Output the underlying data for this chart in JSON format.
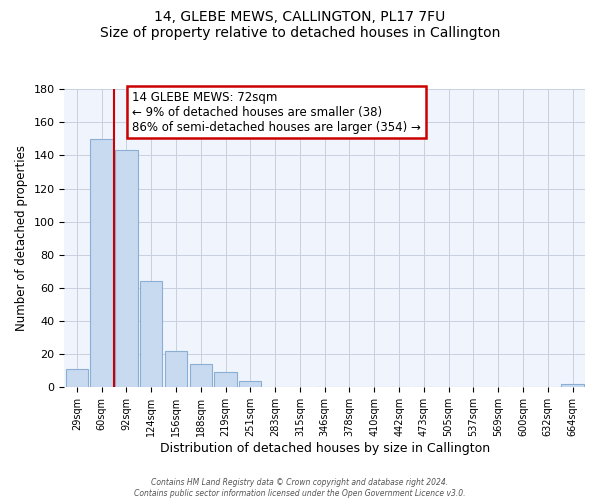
{
  "title": "14, GLEBE MEWS, CALLINGTON, PL17 7FU",
  "subtitle": "Size of property relative to detached houses in Callington",
  "xlabel": "Distribution of detached houses by size in Callington",
  "ylabel": "Number of detached properties",
  "categories": [
    "29sqm",
    "60sqm",
    "92sqm",
    "124sqm",
    "156sqm",
    "188sqm",
    "219sqm",
    "251sqm",
    "283sqm",
    "315sqm",
    "346sqm",
    "378sqm",
    "410sqm",
    "442sqm",
    "473sqm",
    "505sqm",
    "537sqm",
    "569sqm",
    "600sqm",
    "632sqm",
    "664sqm"
  ],
  "values": [
    11,
    150,
    143,
    64,
    22,
    14,
    9,
    4,
    0,
    0,
    0,
    0,
    0,
    0,
    0,
    0,
    0,
    0,
    0,
    0,
    2
  ],
  "bar_color": "#c8daf0",
  "bar_edge_color": "#8aaed4",
  "marker_line_color": "#cc0000",
  "annotation_box_edge": "#cc0000",
  "annotation_box_face": "#ffffff",
  "ylim": [
    0,
    180
  ],
  "yticks": [
    0,
    20,
    40,
    60,
    80,
    100,
    120,
    140,
    160,
    180
  ],
  "marker_label": "14 GLEBE MEWS: 72sqm",
  "annotation_line1": "← 9% of detached houses are smaller (38)",
  "annotation_line2": "86% of semi-detached houses are larger (354) →",
  "footer1": "Contains HM Land Registry data © Crown copyright and database right 2024.",
  "footer2": "Contains public sector information licensed under the Open Government Licence v3.0.",
  "bg_color": "#f0f4fc"
}
